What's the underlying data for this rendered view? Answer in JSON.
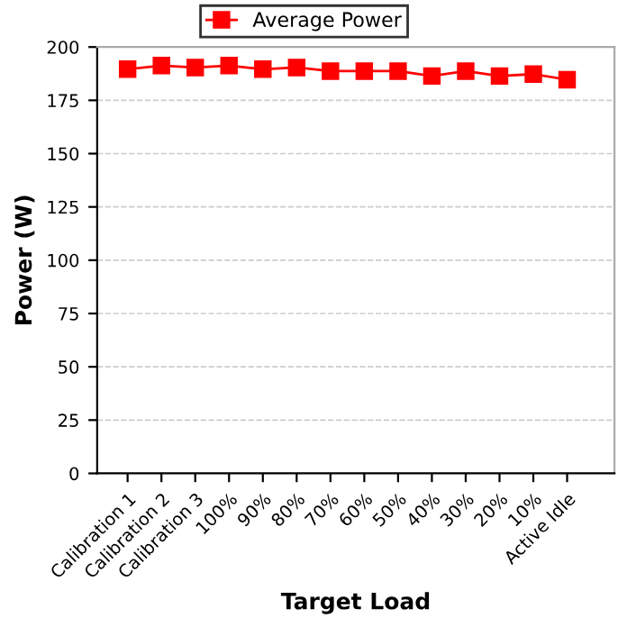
{
  "chart_data": {
    "type": "line",
    "xlabel": "Target Load",
    "ylabel": "Power (W)",
    "categories": [
      "Calibration 1",
      "Calibration 2",
      "Calibration 3",
      "100%",
      "90%",
      "80%",
      "70%",
      "60%",
      "50%",
      "40%",
      "30%",
      "20%",
      "10%",
      "Active Idle"
    ],
    "series": [
      {
        "name": "Average Power",
        "color": "#ff0000",
        "values": [
          189.6,
          191.3,
          190.4,
          191.3,
          189.6,
          190.4,
          188.7,
          188.7,
          188.7,
          186.4,
          188.7,
          186.4,
          187.3,
          184.7
        ]
      }
    ],
    "ylim": [
      0,
      200
    ],
    "yticks": [
      0,
      25,
      50,
      75,
      100,
      125,
      150,
      175,
      200
    ],
    "grid": "y",
    "legend": "top",
    "marker": "square",
    "line_style": "solid"
  }
}
